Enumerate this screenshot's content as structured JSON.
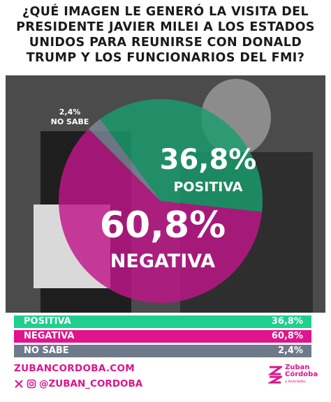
{
  "title_lines": [
    "¿QUÉ IMAGEN LE GENERÓ LA VISITA DEL",
    "PRESIDENTE JAVIER MILEI A LOS ESTADOS",
    "UNIDOS PARA REUNIRSE CON DONALD",
    "TRUMP Y LOS FUNCIONARIOS DEL FMI?"
  ],
  "chart_data": {
    "type": "pie",
    "title": "¿QUÉ IMAGEN LE GENERÓ LA VISITA DEL PRESIDENTE JAVIER MILEI A LOS ESTADOS UNIDOS PARA REUNIRSE CON DONALD TRUMP Y LOS FUNCIONARIOS DEL FMI?",
    "categories": [
      "POSITIVA",
      "NEGATIVA",
      "NO SABE"
    ],
    "values": [
      36.8,
      60.8,
      2.4
    ],
    "value_labels": [
      "36,8%",
      "60,8%",
      "2,4%"
    ],
    "colors": [
      "#1a9e6f",
      "#c0168a",
      "#7d8a99"
    ]
  },
  "legend": [
    {
      "label": "POSITIVA",
      "value": "36,8%",
      "color": "#1fcf8e"
    },
    {
      "label": "NEGATIVA",
      "value": "60,8%",
      "color": "#e0148c"
    },
    {
      "label": "NO SABE",
      "value": "2,4%",
      "color": "#6e7a8a"
    }
  ],
  "footer": {
    "url": "ZUBANCORDOBA.COM",
    "handle": "@ZUBAN_CORDOBA",
    "icons": [
      "x-icon",
      "instagram-icon"
    ]
  },
  "logo": {
    "line1": "Zuban",
    "line2": "Córdoba",
    "line3": "y Asociados"
  }
}
